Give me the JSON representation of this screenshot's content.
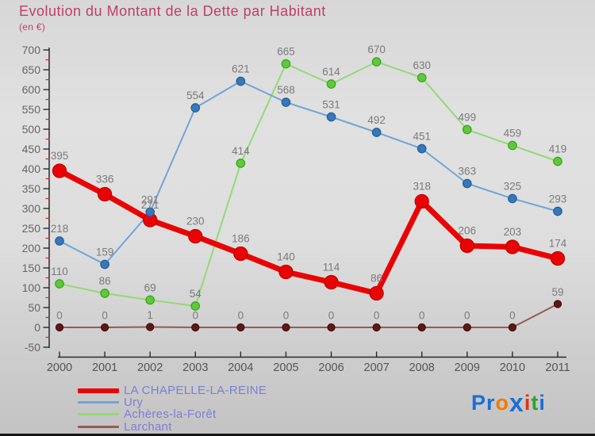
{
  "header": {
    "title": "Evolution du Montant de la Dette par Habitant",
    "subtitle": "(en €)"
  },
  "chart_data": {
    "type": "line",
    "title": "Evolution du Montant de la Dette par Habitant",
    "subtitle": "(en €)",
    "x": [
      2000,
      2001,
      2002,
      2003,
      2004,
      2005,
      2006,
      2007,
      2008,
      2009,
      2010,
      2011
    ],
    "series": [
      {
        "name": "LA CHAPELLE-LA-REINE",
        "values": [
          395,
          336,
          271,
          230,
          186,
          140,
          114,
          86,
          318,
          206,
          203,
          174
        ],
        "line_color": "#e90404",
        "marker_fill": "#e90404",
        "marker_stroke": "#c30000",
        "line_width": 7,
        "marker_radius": 8.5
      },
      {
        "name": "Ury",
        "values": [
          218,
          159,
          291,
          554,
          621,
          568,
          531,
          492,
          451,
          363,
          325,
          293
        ],
        "line_color": "#6fa5d8",
        "marker_fill": "#3579bc",
        "marker_stroke": "#2a5f96",
        "line_width": 2,
        "marker_radius": 5.2
      },
      {
        "name": "Achères-la-Forêt",
        "values": [
          110,
          86,
          69,
          54,
          414,
          665,
          614,
          670,
          630,
          499,
          459,
          419
        ],
        "line_color": "#94d977",
        "marker_fill": "#5fc93c",
        "marker_stroke": "#3da51f",
        "line_width": 2,
        "marker_radius": 5.2
      },
      {
        "name": "Larchant",
        "values": [
          0,
          0,
          1,
          0,
          0,
          0,
          0,
          0,
          0,
          0,
          0,
          59
        ],
        "line_color": "#9a5858",
        "marker_fill": "#5f1717",
        "marker_stroke": "#451010",
        "line_width": 2,
        "marker_radius": 4.5
      }
    ],
    "ylim": [
      -50,
      700
    ],
    "ytick_major_step": 50,
    "ytick_minor_step": 25,
    "grid": false,
    "legend_position": "bottom-left",
    "colors": {
      "title": "#bf3f6a",
      "axis_line": "#2a2a2a",
      "minor_tick": "#cc2a2a",
      "value_label": "#7a7a7a",
      "axis_label": "#666666",
      "legend_text": "#7d7dd8"
    }
  },
  "logo": {
    "text": "Proxiti",
    "letters": [
      {
        "ch": "P",
        "color": "#1b6fd6",
        "big": false
      },
      {
        "ch": "r",
        "color": "#1b6fd6",
        "big": false
      },
      {
        "ch": "o",
        "color": "#f07c00",
        "big": false
      },
      {
        "ch": "x",
        "color": "#1b6fd6",
        "big": true
      },
      {
        "ch": "i",
        "color": "#e3320e",
        "big": false
      },
      {
        "ch": "t",
        "color": "#2da32d",
        "big": false
      },
      {
        "ch": "i",
        "color": "#1b6fd6",
        "big": false
      }
    ]
  }
}
